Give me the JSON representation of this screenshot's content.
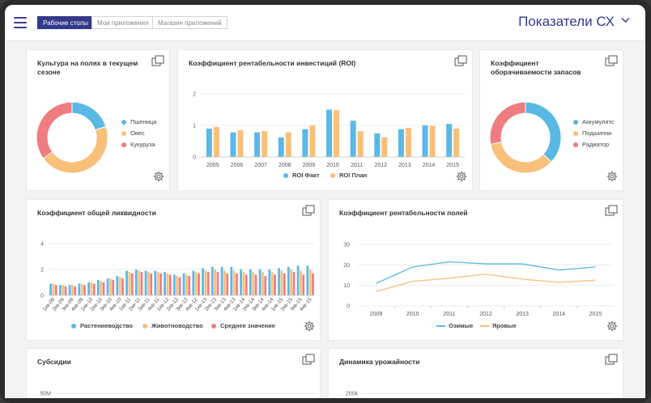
{
  "colors": {
    "blue": "#5ab8e4",
    "orange": "#f7c07b",
    "red": "#ef7d80",
    "navy": "#33398a",
    "grid": "#ececec"
  },
  "header": {
    "tabs": [
      {
        "label": "Рабочие столы",
        "active": true
      },
      {
        "label": "Мои приложения",
        "active": false
      },
      {
        "label": "Магазин приложений",
        "active": false
      }
    ],
    "app_title": "Показатели СХ"
  },
  "cards": {
    "crops": {
      "title": "Культура на полях в текущем сезоне",
      "legend": [
        "Пшеница",
        "Овес",
        "Кукуруза"
      ]
    },
    "roi": {
      "title": "Коэффициент рентабельности инвестиций (ROI)",
      "legend": [
        "ROI Факт",
        "ROI План"
      ]
    },
    "turnover": {
      "title": "Коэффициент оборачиваемости запасов",
      "legend": [
        "Аккумулятс",
        "Подшипни",
        "Радиатор"
      ]
    },
    "liquidity": {
      "title": "Коэффициент общей ликвидности",
      "legend": [
        "Растениеводство",
        "Животноводство",
        "Среднее значение"
      ]
    },
    "profit": {
      "title": "Коэффициент рентабельности полей",
      "legend": [
        "Озимые",
        "Яровые"
      ]
    },
    "subsidies": {
      "title": "Субсидии"
    },
    "yield": {
      "title": "Динамика урожайности"
    }
  },
  "chart_data": [
    {
      "id": "crops",
      "type": "pie",
      "title": "Культура на полях в текущем сезоне",
      "labels": [
        "Пшеница",
        "Овес",
        "Кукуруза"
      ],
      "values": [
        20,
        45,
        35
      ]
    },
    {
      "id": "roi",
      "type": "bar",
      "title": "Коэффициент рентабельности инвестиций (ROI)",
      "categories": [
        "2005",
        "2006",
        "2007",
        "2008",
        "2009",
        "2010",
        "2011",
        "2012",
        "2013",
        "2014",
        "2015"
      ],
      "series": [
        {
          "name": "ROI Факт",
          "values": [
            0.9,
            0.78,
            0.78,
            0.62,
            0.88,
            1.5,
            1.15,
            0.75,
            0.88,
            1.0,
            1.05
          ]
        },
        {
          "name": "ROI План",
          "values": [
            0.95,
            0.85,
            0.82,
            0.78,
            1.0,
            1.48,
            0.82,
            0.62,
            0.92,
            0.98,
            0.9
          ]
        }
      ],
      "yticks": [
        0,
        1,
        2
      ],
      "ylim": [
        0,
        2
      ]
    },
    {
      "id": "turnover",
      "type": "pie",
      "title": "Коэффициент оборачиваемости запасов",
      "labels": [
        "Аккумулятс",
        "Подшипни",
        "Радиатор"
      ],
      "values": [
        37,
        35,
        28
      ]
    },
    {
      "id": "liquidity",
      "type": "bar",
      "title": "Коэффициент общей ликвидности",
      "categories": [
        "1кв-09",
        "2кв-09",
        "3кв-09",
        "4кв-09",
        "1кв-10",
        "2кв-10",
        "3кв-10",
        "4кв-10",
        "1кв-11",
        "2кв-11",
        "3кв-11",
        "4кв-11",
        "1кв-12",
        "2кв-12",
        "3кв-12",
        "4кв-12",
        "1кв-13",
        "2кв-13",
        "3кв-13",
        "4кв-13",
        "1кв-14",
        "2кв-14",
        "3кв-14",
        "4кв-14",
        "1кв-15",
        "2кв-15",
        "3кв-15",
        "4кв-15"
      ],
      "series": [
        {
          "name": "Растениеводство",
          "values": [
            0.9,
            0.8,
            0.8,
            0.9,
            1.0,
            1.2,
            1.3,
            1.5,
            1.9,
            2.0,
            1.9,
            1.9,
            1.8,
            1.6,
            1.7,
            1.9,
            2.1,
            2.2,
            2.2,
            2.2,
            2.0,
            2.0,
            2.0,
            2.0,
            2.1,
            2.2,
            2.3,
            2.3
          ]
        },
        {
          "name": "Животноводство",
          "values": [
            0.9,
            0.8,
            0.8,
            0.9,
            1.0,
            1.1,
            1.3,
            1.4,
            1.8,
            1.9,
            1.8,
            1.8,
            1.7,
            1.5,
            1.6,
            1.8,
            1.9,
            2.0,
            1.9,
            1.9,
            1.8,
            1.8,
            1.8,
            1.8,
            1.9,
            2.0,
            1.9,
            2.0
          ]
        },
        {
          "name": "Среднее значение",
          "values": [
            0.8,
            0.7,
            0.7,
            0.8,
            0.9,
            1.0,
            1.2,
            1.3,
            1.7,
            1.8,
            1.7,
            1.7,
            1.6,
            1.4,
            1.5,
            1.7,
            1.8,
            1.8,
            1.7,
            1.7,
            1.6,
            1.6,
            1.5,
            1.6,
            1.7,
            1.8,
            1.6,
            1.7
          ]
        }
      ],
      "yticks": [
        0,
        2,
        4
      ],
      "ylim": [
        0,
        4
      ]
    },
    {
      "id": "profit",
      "type": "line",
      "title": "Коэффициент рентабельности полей",
      "categories": [
        "2009",
        "2010",
        "2011",
        "2012",
        "2013",
        "2014",
        "2015"
      ],
      "series": [
        {
          "name": "Озимые",
          "values": [
            11,
            19,
            21.5,
            20.5,
            20.5,
            17.5,
            19
          ]
        },
        {
          "name": "Яровые",
          "values": [
            7,
            12,
            13.5,
            15.5,
            13,
            11.5,
            12.5
          ]
        }
      ],
      "yticks": [
        0,
        10,
        20,
        30
      ],
      "ylim": [
        0,
        30
      ]
    },
    {
      "id": "subsidies",
      "type": "bar",
      "title": "Субсидии",
      "yticks": [
        "50M"
      ]
    },
    {
      "id": "yield",
      "type": "bar",
      "title": "Динамика урожайности",
      "yticks": [
        "200k"
      ]
    }
  ]
}
